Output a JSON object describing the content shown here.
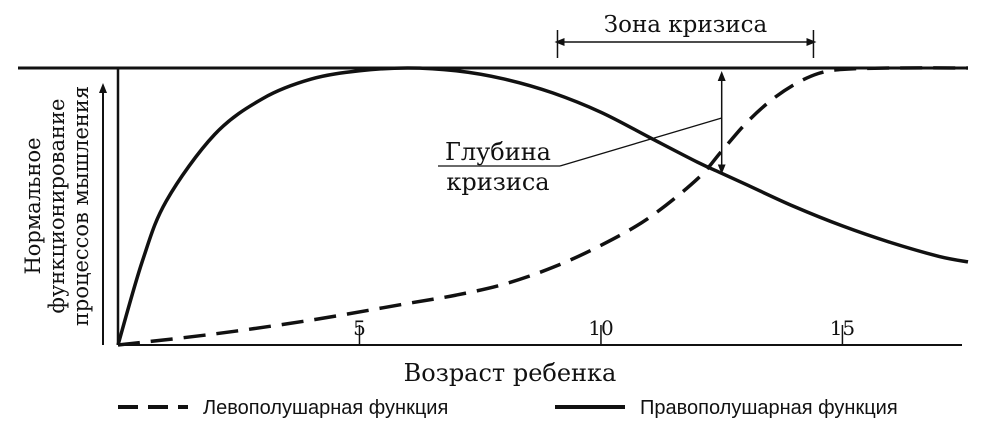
{
  "chart_data": {
    "type": "line",
    "xlabel": "Возраст ребенка",
    "ylabel": [
      "Нормальное",
      "функционирование",
      "процессов мышления"
    ],
    "x_ticks": [
      5,
      10,
      15
    ],
    "xlim": [
      0,
      17.6
    ],
    "ylim": [
      0,
      1
    ],
    "grid": false,
    "legend_position": "bottom",
    "series": [
      {
        "name": "Левополушарная функция",
        "style": "dashed",
        "points": [
          [
            0,
            0.0
          ],
          [
            2,
            0.04
          ],
          [
            4,
            0.09
          ],
          [
            6,
            0.15
          ],
          [
            7,
            0.18
          ],
          [
            8,
            0.22
          ],
          [
            9,
            0.28
          ],
          [
            10,
            0.36
          ],
          [
            11,
            0.46
          ],
          [
            12,
            0.6
          ],
          [
            12.5,
            0.7
          ],
          [
            13,
            0.8
          ],
          [
            13.5,
            0.88
          ],
          [
            14,
            0.94
          ],
          [
            14.5,
            0.98
          ],
          [
            15,
            0.995
          ],
          [
            16,
            1.0
          ],
          [
            17.6,
            1.0
          ]
        ]
      },
      {
        "name": "Правополушарная функция",
        "style": "solid",
        "points": [
          [
            0,
            0.0
          ],
          [
            0.5,
            0.3
          ],
          [
            1,
            0.52
          ],
          [
            2,
            0.76
          ],
          [
            3,
            0.89
          ],
          [
            4,
            0.96
          ],
          [
            5,
            0.99
          ],
          [
            6,
            1.0
          ],
          [
            7,
            0.99
          ],
          [
            8,
            0.96
          ],
          [
            9,
            0.91
          ],
          [
            10,
            0.84
          ],
          [
            11,
            0.75
          ],
          [
            12,
            0.66
          ],
          [
            12.5,
            0.62
          ],
          [
            13,
            0.58
          ],
          [
            14,
            0.5
          ],
          [
            15,
            0.43
          ],
          [
            16,
            0.37
          ],
          [
            17,
            0.32
          ],
          [
            17.6,
            0.3
          ]
        ]
      }
    ],
    "annotations": {
      "crisis_zone": {
        "label": "Зона кризиса",
        "x_range": [
          9.1,
          14.4
        ]
      },
      "crisis_depth": {
        "label": [
          "Глубина",
          "кризиса"
        ],
        "x": 12.5
      }
    }
  },
  "colors": {
    "ink": "#111111",
    "faded_ink": "#555555",
    "background": "#ffffff"
  }
}
